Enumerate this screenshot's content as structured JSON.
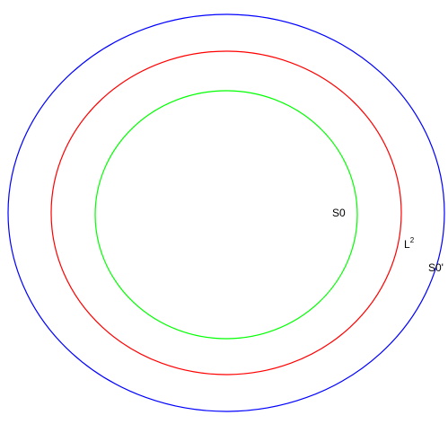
{
  "diagram": {
    "sets": [
      {
        "id": "S0",
        "label": "S0",
        "color": "#00ff00"
      },
      {
        "id": "L2",
        "label": "L",
        "superscript": "2",
        "color": "#ff0000"
      },
      {
        "id": "S0prime",
        "label": "S0'",
        "color": "#0000ff"
      }
    ],
    "relation": "nested"
  }
}
